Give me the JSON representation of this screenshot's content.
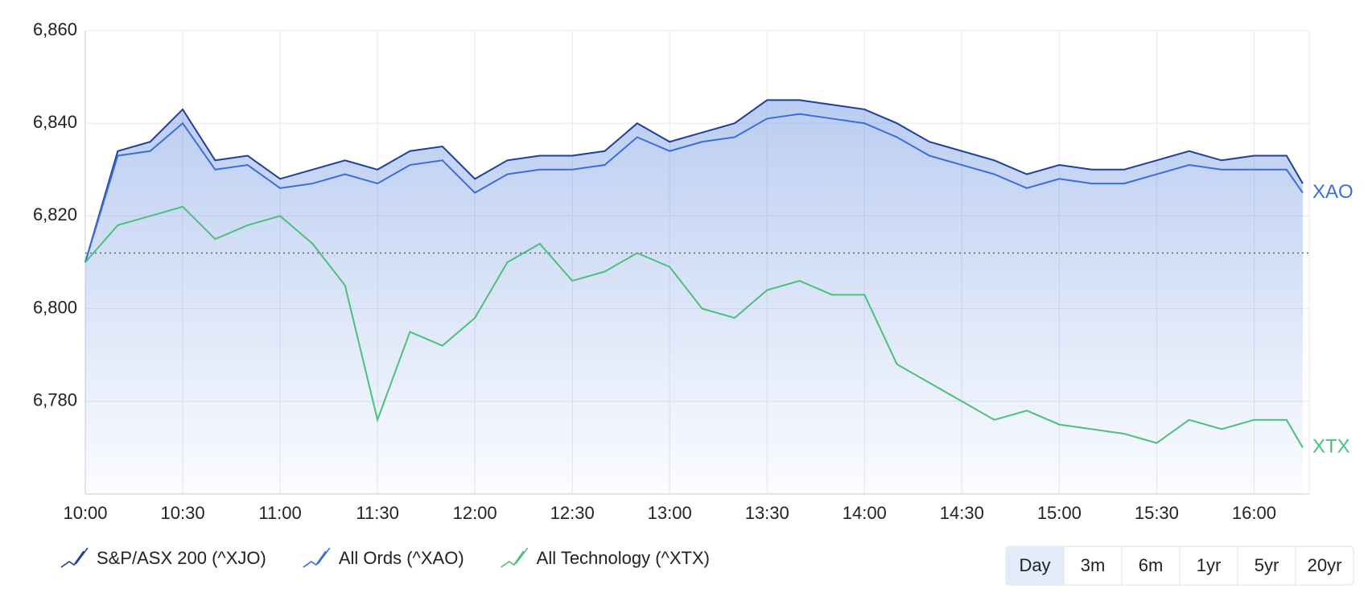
{
  "chart_data": {
    "type": "line",
    "x": [
      "10:00",
      "10:10",
      "10:20",
      "10:30",
      "10:40",
      "10:50",
      "11:00",
      "11:10",
      "11:20",
      "11:30",
      "11:40",
      "11:50",
      "12:00",
      "12:10",
      "12:20",
      "12:30",
      "12:40",
      "12:50",
      "13:00",
      "13:10",
      "13:20",
      "13:30",
      "13:40",
      "13:50",
      "14:00",
      "14:10",
      "14:20",
      "14:30",
      "14:40",
      "14:50",
      "15:00",
      "15:10",
      "15:20",
      "15:30",
      "15:40",
      "15:50",
      "16:00",
      "16:10",
      "16:15"
    ],
    "xlim": [
      "10:00",
      "16:17"
    ],
    "xticks": [
      "10:00",
      "10:30",
      "11:00",
      "11:30",
      "12:00",
      "12:30",
      "13:00",
      "13:30",
      "14:00",
      "14:30",
      "15:00",
      "15:30",
      "16:00"
    ],
    "ylim": [
      6760,
      6860
    ],
    "yticks": [
      {
        "value": 6780,
        "label": "6,780"
      },
      {
        "value": 6800,
        "label": "6,800"
      },
      {
        "value": 6820,
        "label": "6,820"
      },
      {
        "value": 6840,
        "label": "6,840"
      },
      {
        "value": 6860,
        "label": "6,860"
      }
    ],
    "grid": true,
    "reference": 6812,
    "series": [
      {
        "name": "S&P/ASX 200 (^XJO)",
        "color": "#1f3f9a",
        "fill": true,
        "values": [
          6810,
          6834,
          6836,
          6843,
          6832,
          6833,
          6828,
          6830,
          6832,
          6830,
          6834,
          6835,
          6828,
          6832,
          6833,
          6833,
          6834,
          6840,
          6836,
          6838,
          6840,
          6845,
          6845,
          6844,
          6843,
          6840,
          6836,
          6834,
          6832,
          6829,
          6831,
          6830,
          6830,
          6832,
          6834,
          6832,
          6833,
          6833,
          6827
        ]
      },
      {
        "name": "All Ords (^XAO)",
        "color": "#3a6fd8",
        "label": "XAO",
        "values": [
          6810,
          6833,
          6834,
          6840,
          6830,
          6831,
          6826,
          6827,
          6829,
          6827,
          6831,
          6832,
          6825,
          6829,
          6830,
          6830,
          6831,
          6837,
          6834,
          6836,
          6837,
          6841,
          6842,
          6841,
          6840,
          6837,
          6833,
          6831,
          6829,
          6826,
          6828,
          6827,
          6827,
          6829,
          6831,
          6830,
          6830,
          6830,
          6825
        ]
      },
      {
        "name": "All Technology (^XTX)",
        "color": "#4cc07a",
        "label": "XTX",
        "values": [
          6810,
          6818,
          6820,
          6822,
          6815,
          6818,
          6820,
          6814,
          6805,
          6776,
          6795,
          6792,
          6798,
          6810,
          6814,
          6806,
          6808,
          6812,
          6809,
          6800,
          6798,
          6804,
          6806,
          6803,
          6803,
          6788,
          6784,
          6780,
          6776,
          6778,
          6775,
          6774,
          6773,
          6771,
          6776,
          6774,
          6776,
          6776,
          6770
        ]
      }
    ],
    "ranges": [
      "Day",
      "3m",
      "6m",
      "1yr",
      "5yr",
      "20yr"
    ],
    "selected_range": "Day"
  }
}
